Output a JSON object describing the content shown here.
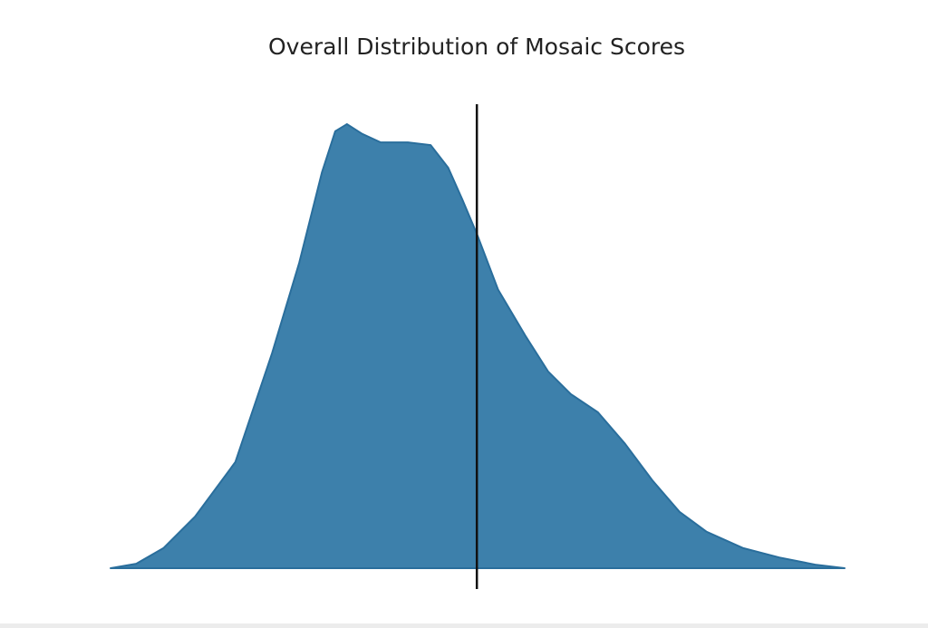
{
  "chart_data": {
    "type": "area",
    "title": "Overall Distribution of Mosaic Scores",
    "x": [
      0,
      3.5,
      7.2,
      11.5,
      17.0,
      22.0,
      25.7,
      28.8,
      30.6,
      32.2,
      34.3,
      36.8,
      40.5,
      43.6,
      46.0,
      47.9,
      49.9,
      52.8,
      56.5,
      59.6,
      62.7,
      66.4,
      70.1,
      73.8,
      77.5,
      81.2,
      86.2,
      91.1,
      96.0,
      100
    ],
    "series": [
      {
        "color": "#3d80ab",
        "values": [
          0,
          0.01,
          0.045,
          0.116,
          0.239,
          0.484,
          0.688,
          0.892,
          0.984,
          1.0,
          0.978,
          0.959,
          0.959,
          0.953,
          0.902,
          0.831,
          0.753,
          0.627,
          0.524,
          0.443,
          0.392,
          0.351,
          0.28,
          0.198,
          0.127,
          0.082,
          0.045,
          0.024,
          0.008,
          0
        ]
      }
    ],
    "vline": 49.9,
    "xlim": [
      0,
      100
    ],
    "ylim": [
      -0.047,
      1.045
    ]
  }
}
